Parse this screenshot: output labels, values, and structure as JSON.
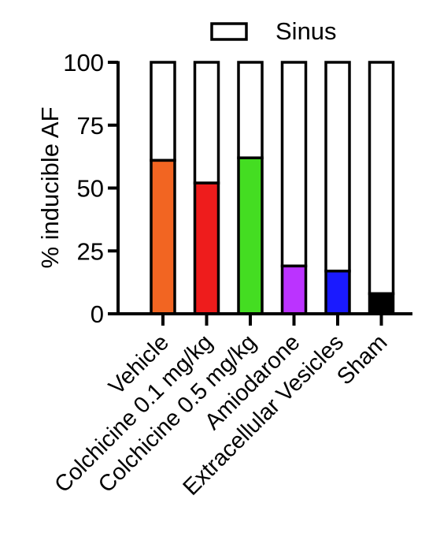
{
  "chart_data": {
    "type": "bar",
    "stacked": true,
    "categories": [
      "Vehicle",
      "Colchicine 0.1 mg/kg",
      "Colchicine 0.5 mg/kg",
      "Amiodarone",
      "Extracellular Vesicles",
      "Sham"
    ],
    "series": [
      {
        "values": [
          61,
          52,
          62,
          19,
          17,
          8
        ],
        "colors": [
          "#f26522",
          "#ee1c1c",
          "#44dd22",
          "#bb33ff",
          "#1a1aff",
          "#000000"
        ]
      },
      {
        "name": "Sinus",
        "values": [
          39,
          48,
          38,
          81,
          83,
          92
        ],
        "color": "#ffffff"
      }
    ],
    "ylabel": "% inducible AF",
    "xlabel": "",
    "ylim": [
      0,
      100
    ],
    "yticks": [
      "0",
      "25",
      "50",
      "75",
      "100"
    ],
    "legend": {
      "position": "top",
      "entries": [
        "Sinus"
      ]
    },
    "grid": false
  }
}
